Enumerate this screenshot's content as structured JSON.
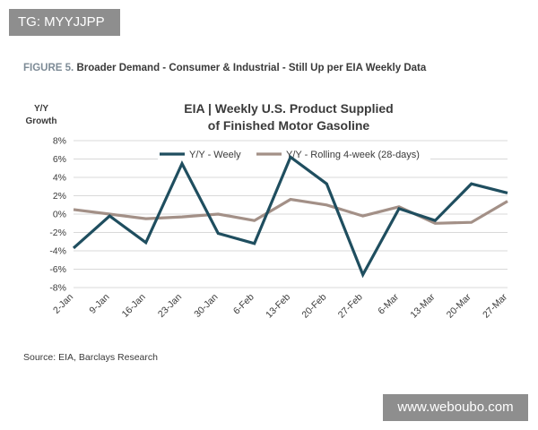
{
  "watermarks": {
    "top_left": "TG: MYYJJPP",
    "bottom_right": "www.weboubo.com"
  },
  "figure": {
    "label": "FIGURE 5.",
    "caption": "Broader Demand - Consumer & Industrial - Still Up per EIA Weekly Data",
    "source": "Source: EIA, Barclays Research"
  },
  "colors": {
    "series_weekly": "#1f4e5f",
    "series_rolling": "#a39087",
    "grid": "#d9d9d9",
    "text": "#3a3a3a"
  },
  "chart_data": {
    "type": "line",
    "title": "EIA | Weekly U.S. Product Supplied of Finished Motor Gasoline",
    "title_lines": [
      "EIA | Weekly U.S. Product Supplied",
      "of Finished Motor Gasoline"
    ],
    "ylabel_lines": [
      "Y/Y",
      "Growth"
    ],
    "xlabel": "",
    "categories": [
      "2-Jan",
      "9-Jan",
      "16-Jan",
      "23-Jan",
      "30-Jan",
      "6-Feb",
      "13-Feb",
      "20-Feb",
      "27-Feb",
      "6-Mar",
      "13-Mar",
      "20-Mar",
      "27-Mar"
    ],
    "yticks": [
      "8%",
      "6%",
      "4%",
      "2%",
      "0%",
      "-2%",
      "-4%",
      "-6%",
      "-8%"
    ],
    "ylim": [
      -8,
      8
    ],
    "grid": true,
    "legend_position": "top",
    "series": [
      {
        "name": "Y/Y - Weely",
        "values": [
          -3.7,
          -0.2,
          -3.1,
          5.5,
          -2.1,
          -3.2,
          6.2,
          3.3,
          -6.6,
          0.6,
          -0.7,
          3.3,
          2.3
        ]
      },
      {
        "name": "Y/Y - Rolling 4-week (28-days)",
        "values": [
          0.5,
          0.0,
          -0.5,
          -0.3,
          0.0,
          -0.7,
          1.6,
          1.0,
          -0.2,
          0.8,
          -1.0,
          -0.9,
          1.4
        ]
      }
    ]
  }
}
